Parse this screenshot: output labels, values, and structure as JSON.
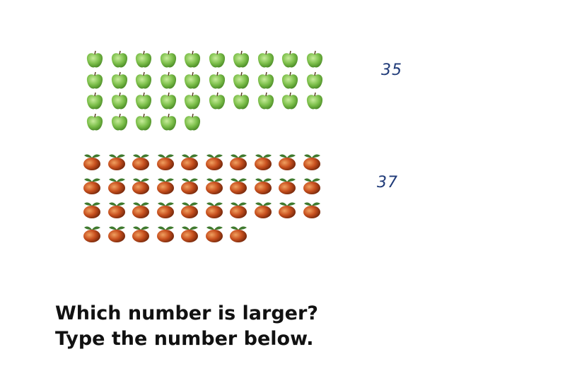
{
  "groups": [
    {
      "id": "green-apples",
      "icon": "green-apple-icon",
      "count": 35,
      "per_row": 10,
      "count_label": "35",
      "colors": {
        "body": "#7cbf4a",
        "shade": "#4f8f2a"
      }
    },
    {
      "id": "red-apples",
      "icon": "red-apple-icon",
      "count": 37,
      "per_row": 10,
      "count_label": "37",
      "colors": {
        "body": "#c8501e",
        "shade": "#7a2a0c",
        "leaf": "#3f7a2e"
      }
    }
  ],
  "question": {
    "line1": "Which number is larger?",
    "line2": "Type the number below."
  }
}
